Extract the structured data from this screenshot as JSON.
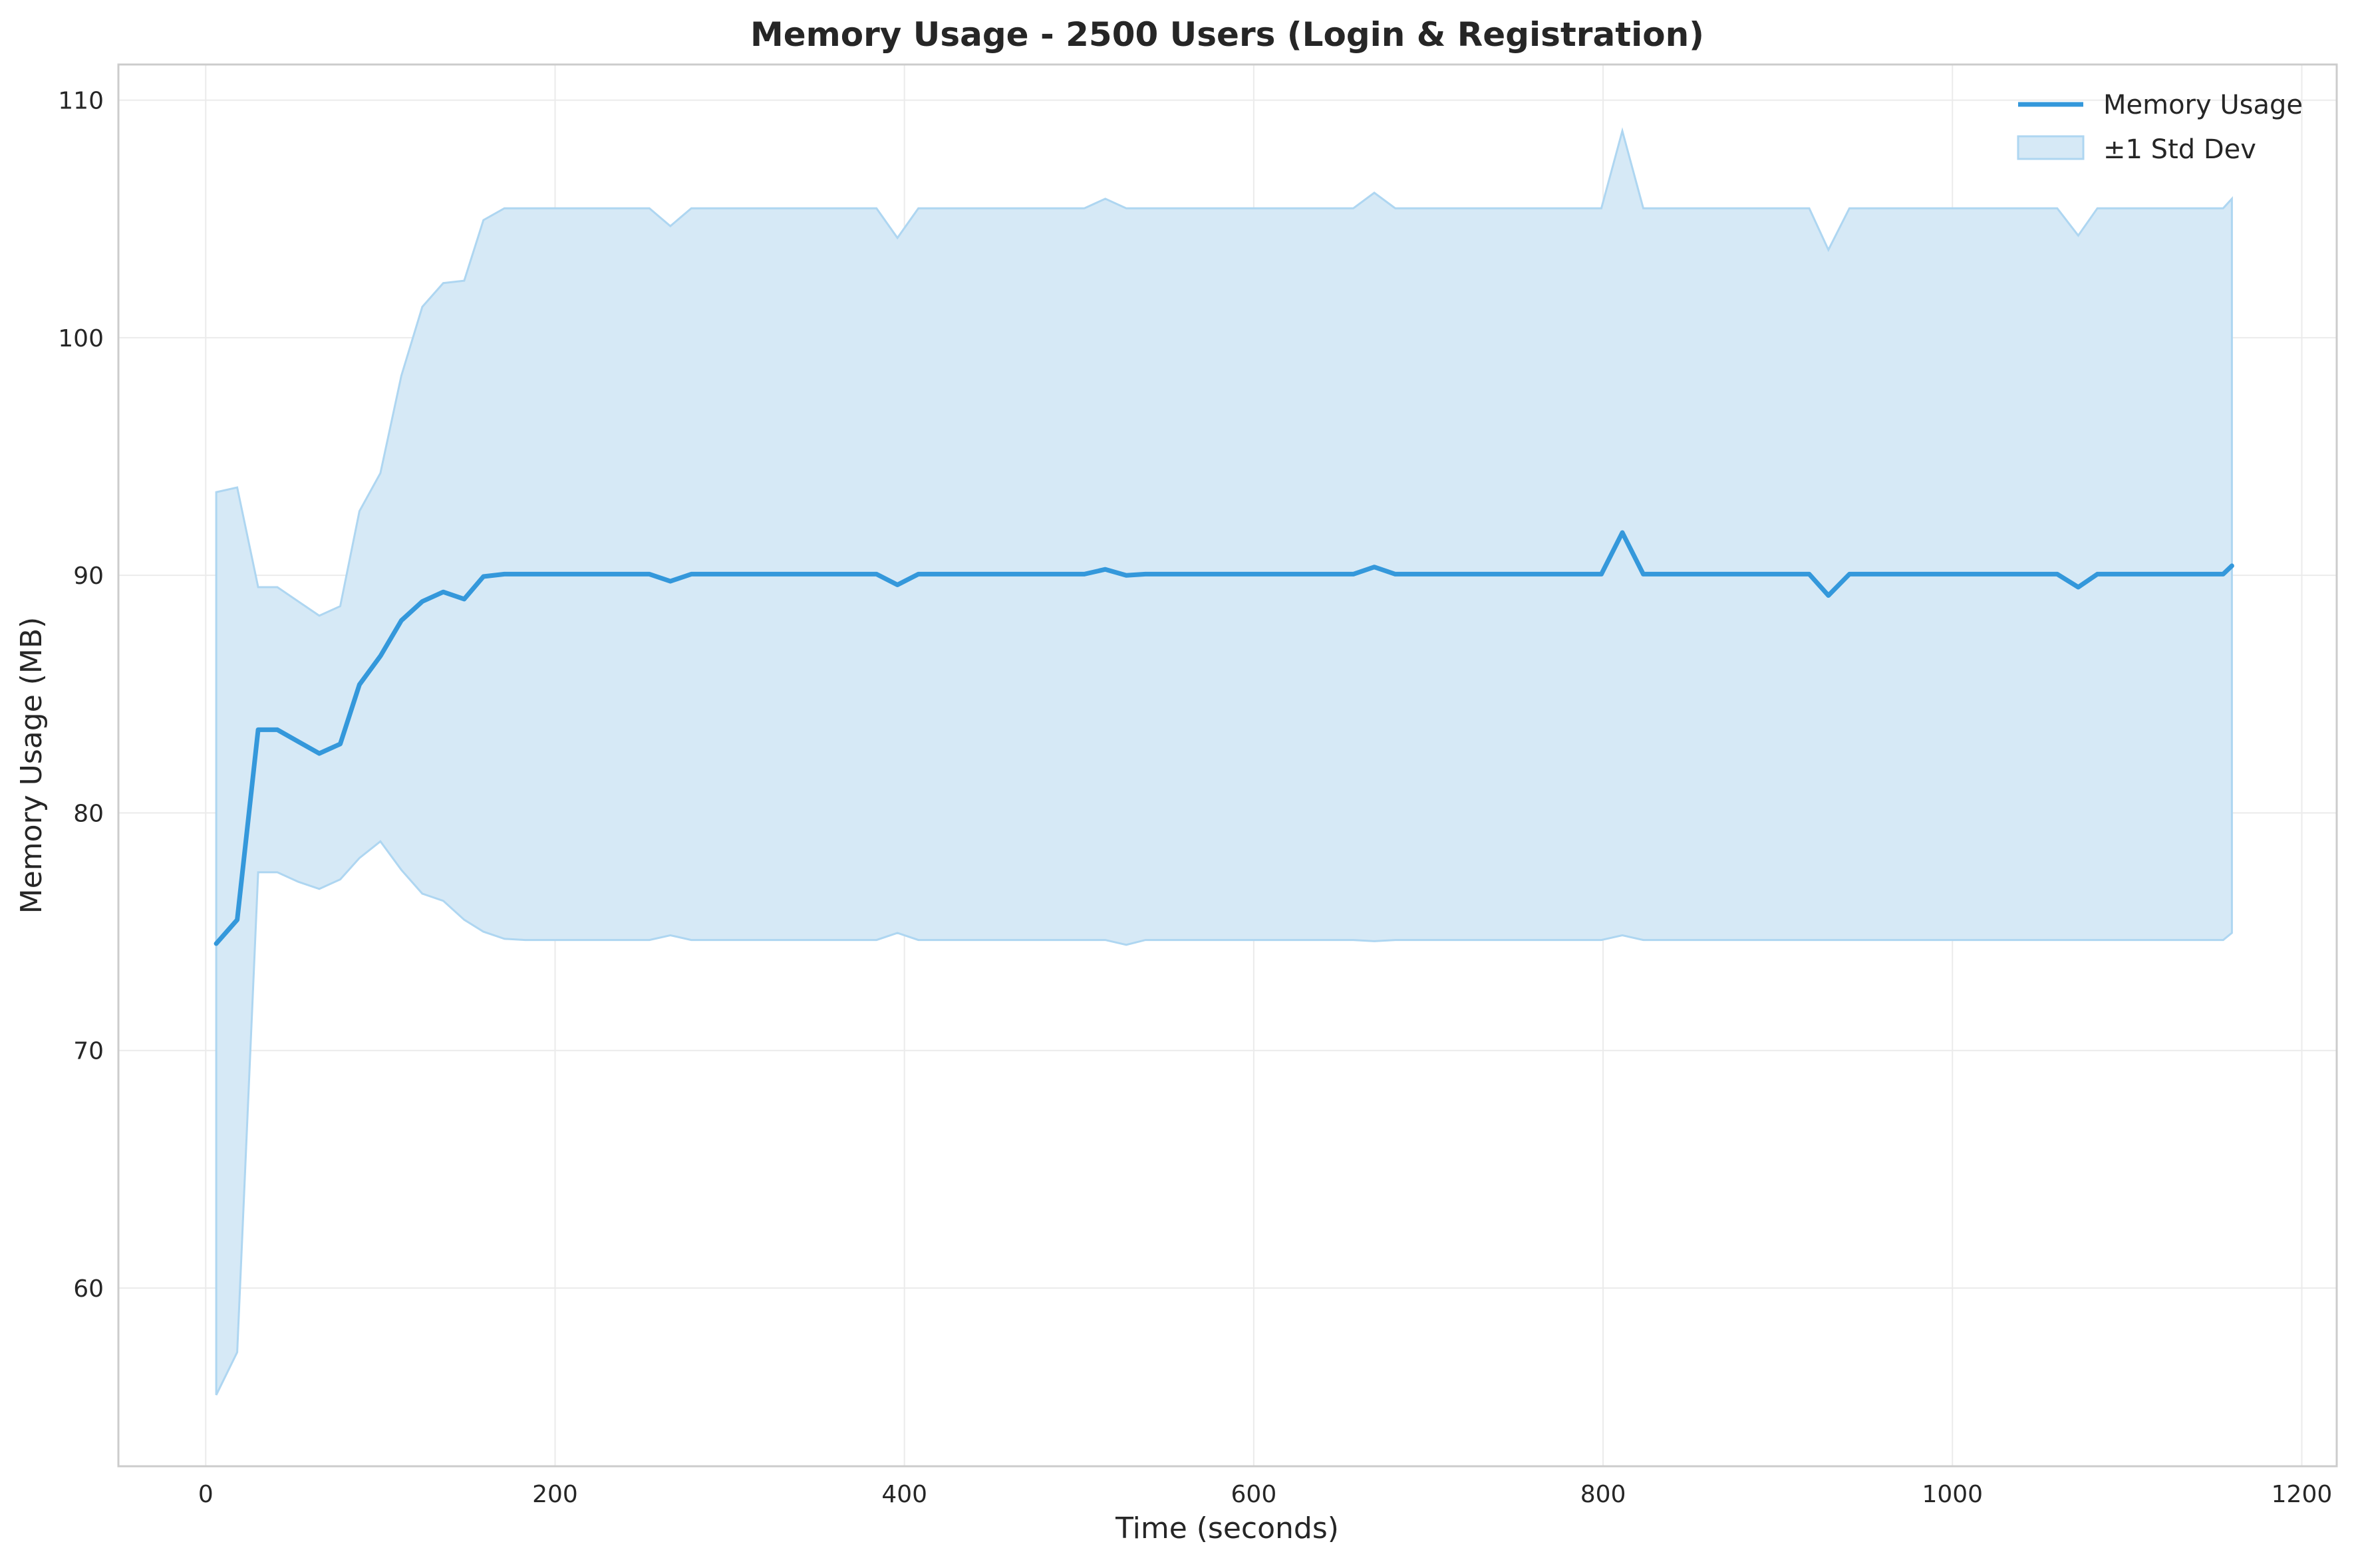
{
  "chart_data": {
    "type": "line",
    "title": "Memory Usage - 2500 Users (Login & Registration)",
    "xlabel": "Time (seconds)",
    "ylabel": "Memory Usage (MB)",
    "xlim": [
      -50,
      1220
    ],
    "ylim": [
      52.5,
      111.5
    ],
    "xticks": [
      0,
      200,
      400,
      600,
      800,
      1000,
      1200
    ],
    "xtick_labels": [
      "0",
      "200",
      "400",
      "600",
      "800",
      "1000",
      "1200"
    ],
    "yticks": [
      60,
      70,
      80,
      90,
      100,
      110
    ],
    "ytick_labels": [
      "60",
      "70",
      "80",
      "90",
      "100",
      "110"
    ],
    "grid": true,
    "legend_position": "top-right",
    "colors": {
      "line": "#3498db",
      "band_fill": "#d6e9f6",
      "band_edge": "#aed6f1"
    },
    "series": [
      {
        "name": "Memory Usage",
        "kind": "line",
        "x": [
          6,
          18,
          30,
          41,
          53,
          65,
          77,
          88,
          100,
          112,
          124,
          136,
          148,
          159,
          171,
          183,
          195,
          207,
          219,
          231,
          242,
          254,
          266,
          278,
          290,
          302,
          313,
          325,
          337,
          349,
          361,
          373,
          384,
          396,
          408,
          420,
          432,
          444,
          456,
          467,
          479,
          491,
          503,
          515,
          527,
          538,
          550,
          562,
          574,
          586,
          598,
          610,
          621,
          633,
          645,
          657,
          669,
          681,
          692,
          704,
          716,
          728,
          740,
          752,
          764,
          775,
          787,
          799,
          811,
          823,
          835,
          846,
          858,
          870,
          882,
          894,
          906,
          918,
          929,
          941,
          953,
          965,
          977,
          989,
          1000,
          1012,
          1024,
          1036,
          1048,
          1060,
          1072,
          1083,
          1095,
          1107,
          1119,
          1131,
          1143,
          1155,
          1160
        ],
        "y": [
          74.5,
          75.5,
          83.5,
          83.5,
          83.0,
          82.5,
          82.9,
          85.4,
          86.6,
          88.1,
          88.9,
          89.3,
          89.0,
          89.95,
          90.05,
          90.05,
          90.05,
          90.05,
          90.05,
          90.05,
          90.05,
          90.05,
          89.75,
          90.05,
          90.05,
          90.05,
          90.05,
          90.05,
          90.05,
          90.05,
          90.05,
          90.05,
          90.05,
          89.6,
          90.05,
          90.05,
          90.05,
          90.05,
          90.05,
          90.05,
          90.05,
          90.05,
          90.05,
          90.25,
          90.0,
          90.05,
          90.05,
          90.05,
          90.05,
          90.05,
          90.05,
          90.05,
          90.05,
          90.05,
          90.05,
          90.05,
          90.35,
          90.05,
          90.05,
          90.05,
          90.05,
          90.05,
          90.05,
          90.05,
          90.05,
          90.05,
          90.05,
          90.05,
          91.8,
          90.05,
          90.05,
          90.05,
          90.05,
          90.05,
          90.05,
          90.05,
          90.05,
          90.05,
          89.15,
          90.05,
          90.05,
          90.05,
          90.05,
          90.05,
          90.05,
          90.05,
          90.05,
          90.05,
          90.05,
          90.05,
          89.5,
          90.05,
          90.05,
          90.05,
          90.05,
          90.05,
          90.05,
          90.05,
          90.4
        ]
      },
      {
        "name": "±1 Std Dev",
        "kind": "band",
        "x": [
          6,
          18,
          30,
          41,
          53,
          65,
          77,
          88,
          100,
          112,
          124,
          136,
          148,
          159,
          171,
          183,
          195,
          207,
          219,
          231,
          242,
          254,
          266,
          278,
          290,
          302,
          313,
          325,
          337,
          349,
          361,
          373,
          384,
          396,
          408,
          420,
          432,
          444,
          456,
          467,
          479,
          491,
          503,
          515,
          527,
          538,
          550,
          562,
          574,
          586,
          598,
          610,
          621,
          633,
          645,
          657,
          669,
          681,
          692,
          704,
          716,
          728,
          740,
          752,
          764,
          775,
          787,
          799,
          811,
          823,
          835,
          846,
          858,
          870,
          882,
          894,
          906,
          918,
          929,
          941,
          953,
          965,
          977,
          989,
          1000,
          1012,
          1024,
          1036,
          1048,
          1060,
          1072,
          1083,
          1095,
          1107,
          1119,
          1131,
          1143,
          1155,
          1160
        ],
        "upper": [
          93.5,
          93.7,
          89.5,
          89.5,
          88.9,
          88.3,
          88.7,
          92.7,
          94.3,
          98.4,
          101.3,
          102.3,
          102.4,
          104.95,
          105.45,
          105.45,
          105.45,
          105.45,
          105.45,
          105.45,
          105.45,
          105.45,
          104.7,
          105.45,
          105.45,
          105.45,
          105.45,
          105.45,
          105.45,
          105.45,
          105.45,
          105.45,
          105.45,
          104.2,
          105.45,
          105.45,
          105.45,
          105.45,
          105.45,
          105.45,
          105.45,
          105.45,
          105.45,
          105.85,
          105.45,
          105.45,
          105.45,
          105.45,
          105.45,
          105.45,
          105.45,
          105.45,
          105.45,
          105.45,
          105.45,
          105.45,
          106.1,
          105.45,
          105.45,
          105.45,
          105.45,
          105.45,
          105.45,
          105.45,
          105.45,
          105.45,
          105.45,
          105.45,
          108.7,
          105.45,
          105.45,
          105.45,
          105.45,
          105.45,
          105.45,
          105.45,
          105.45,
          105.45,
          103.7,
          105.45,
          105.45,
          105.45,
          105.45,
          105.45,
          105.45,
          105.45,
          105.45,
          105.45,
          105.45,
          105.45,
          104.3,
          105.45,
          105.45,
          105.45,
          105.45,
          105.45,
          105.45,
          105.45,
          105.85
        ],
        "lower": [
          55.5,
          57.3,
          77.5,
          77.5,
          77.1,
          76.8,
          77.2,
          78.1,
          78.8,
          77.6,
          76.6,
          76.3,
          75.5,
          75.0,
          74.7,
          74.65,
          74.65,
          74.65,
          74.65,
          74.65,
          74.65,
          74.65,
          74.85,
          74.65,
          74.65,
          74.65,
          74.65,
          74.65,
          74.65,
          74.65,
          74.65,
          74.65,
          74.65,
          74.95,
          74.65,
          74.65,
          74.65,
          74.65,
          74.65,
          74.65,
          74.65,
          74.65,
          74.65,
          74.65,
          74.45,
          74.65,
          74.65,
          74.65,
          74.65,
          74.65,
          74.65,
          74.65,
          74.65,
          74.65,
          74.65,
          74.65,
          74.6,
          74.65,
          74.65,
          74.65,
          74.65,
          74.65,
          74.65,
          74.65,
          74.65,
          74.65,
          74.65,
          74.65,
          74.85,
          74.65,
          74.65,
          74.65,
          74.65,
          74.65,
          74.65,
          74.65,
          74.65,
          74.65,
          74.65,
          74.65,
          74.65,
          74.65,
          74.65,
          74.65,
          74.65,
          74.65,
          74.65,
          74.65,
          74.65,
          74.65,
          74.65,
          74.65,
          74.65,
          74.65,
          74.65,
          74.65,
          74.65,
          74.65,
          74.95
        ]
      }
    ],
    "legend": [
      "Memory Usage",
      "±1 Std Dev"
    ]
  }
}
